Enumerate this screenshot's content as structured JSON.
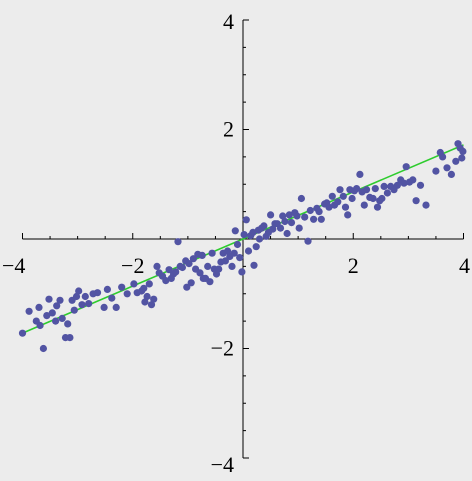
{
  "chart_data": {
    "type": "scatter",
    "title": "",
    "xlabel": "",
    "ylabel": "",
    "xlim": [
      -4,
      4
    ],
    "ylim": [
      -4,
      4
    ],
    "grid": false,
    "axes_through_origin": true,
    "x_ticks": [
      {
        "value": -4,
        "label": "−4"
      },
      {
        "value": -2,
        "label": "−2"
      },
      {
        "value": 2,
        "label": "2"
      },
      {
        "value": 4,
        "label": "4"
      }
    ],
    "y_ticks": [
      {
        "value": 4,
        "label": "4"
      },
      {
        "value": 2,
        "label": "2"
      },
      {
        "value": -2,
        "label": "−2"
      },
      {
        "value": -4,
        "label": "−4"
      }
    ],
    "colors": {
      "points": "#5254a3",
      "fit_line": "#2ecc2e",
      "axes": "#000000",
      "background": "#ececec"
    },
    "fit_line": {
      "x": [
        -4,
        4
      ],
      "y": [
        -1.72,
        1.72
      ]
    },
    "points": [
      [
        -4.0,
        -1.72
      ],
      [
        -3.88,
        -1.32
      ],
      [
        -3.75,
        -1.5
      ],
      [
        -3.7,
        -1.25
      ],
      [
        -3.68,
        -1.58
      ],
      [
        -3.62,
        -2.0
      ],
      [
        -3.56,
        -1.4
      ],
      [
        -3.52,
        -1.1
      ],
      [
        -3.46,
        -1.35
      ],
      [
        -3.4,
        -1.5
      ],
      [
        -3.38,
        -1.22
      ],
      [
        -3.32,
        -1.12
      ],
      [
        -3.28,
        -1.45
      ],
      [
        -3.22,
        -1.8
      ],
      [
        -3.18,
        -1.55
      ],
      [
        -3.14,
        -1.8
      ],
      [
        -3.1,
        -1.12
      ],
      [
        -3.06,
        -1.3
      ],
      [
        -3.02,
        -1.05
      ],
      [
        -2.98,
        -0.95
      ],
      [
        -2.92,
        -1.2
      ],
      [
        -2.86,
        -1.05
      ],
      [
        -2.8,
        -1.18
      ],
      [
        -2.72,
        -1.0
      ],
      [
        -2.64,
        -0.98
      ],
      [
        -2.52,
        -1.25
      ],
      [
        -2.46,
        -0.92
      ],
      [
        -2.38,
        -1.08
      ],
      [
        -2.3,
        -1.25
      ],
      [
        -2.2,
        -0.88
      ],
      [
        -2.1,
        -1.0
      ],
      [
        -1.98,
        -0.82
      ],
      [
        -1.92,
        -0.98
      ],
      [
        -1.84,
        -0.95
      ],
      [
        -1.8,
        -0.9
      ],
      [
        -1.78,
        -1.15
      ],
      [
        -1.74,
        -1.05
      ],
      [
        -1.7,
        -0.82
      ],
      [
        -1.66,
        -1.2
      ],
      [
        -1.62,
        -1.1
      ],
      [
        -1.56,
        -0.5
      ],
      [
        -1.52,
        -0.62
      ],
      [
        -1.46,
        -0.68
      ],
      [
        -1.4,
        -0.76
      ],
      [
        -1.34,
        -0.56
      ],
      [
        -1.3,
        -0.72
      ],
      [
        -1.26,
        -0.64
      ],
      [
        -1.22,
        -0.6
      ],
      [
        -1.18,
        -0.05
      ],
      [
        -1.14,
        -0.5
      ],
      [
        -1.1,
        -0.52
      ],
      [
        -1.04,
        -0.4
      ],
      [
        -1.02,
        -0.88
      ],
      [
        -0.98,
        -0.45
      ],
      [
        -0.94,
        -0.8
      ],
      [
        -0.9,
        -0.36
      ],
      [
        -0.86,
        -0.55
      ],
      [
        -0.82,
        -0.28
      ],
      [
        -0.78,
        -0.62
      ],
      [
        -0.74,
        -0.3
      ],
      [
        -0.72,
        -0.72
      ],
      [
        -0.68,
        -0.72
      ],
      [
        -0.64,
        -0.5
      ],
      [
        -0.6,
        -0.78
      ],
      [
        -0.56,
        -0.26
      ],
      [
        -0.52,
        -0.55
      ],
      [
        -0.48,
        -0.64
      ],
      [
        -0.44,
        -0.55
      ],
      [
        -0.4,
        -0.42
      ],
      [
        -0.36,
        -0.26
      ],
      [
        -0.32,
        -0.4
      ],
      [
        -0.28,
        -0.22
      ],
      [
        -0.24,
        -0.32
      ],
      [
        -0.2,
        -0.5
      ],
      [
        -0.16,
        -0.26
      ],
      [
        -0.14,
        0.15
      ],
      [
        -0.1,
        -0.1
      ],
      [
        -0.06,
        -0.34
      ],
      [
        -0.02,
        -0.6
      ],
      [
        0.02,
        0.08
      ],
      [
        0.06,
        0.35
      ],
      [
        0.1,
        -0.22
      ],
      [
        0.14,
        0.06
      ],
      [
        0.18,
        0.12
      ],
      [
        0.2,
        -0.48
      ],
      [
        0.24,
        -0.14
      ],
      [
        0.28,
        0.16
      ],
      [
        0.3,
        0.0
      ],
      [
        0.34,
        0.2
      ],
      [
        0.38,
        0.24
      ],
      [
        0.42,
        0.05
      ],
      [
        0.46,
        0.12
      ],
      [
        0.5,
        0.44
      ],
      [
        0.54,
        0.18
      ],
      [
        0.58,
        0.28
      ],
      [
        0.62,
        0.28
      ],
      [
        0.68,
        0.2
      ],
      [
        0.72,
        0.42
      ],
      [
        0.76,
        0.32
      ],
      [
        0.8,
        0.1
      ],
      [
        0.84,
        0.44
      ],
      [
        0.88,
        0.3
      ],
      [
        0.94,
        0.48
      ],
      [
        0.98,
        0.42
      ],
      [
        1.02,
        0.2
      ],
      [
        1.06,
        0.74
      ],
      [
        1.12,
        0.4
      ],
      [
        1.18,
        -0.04
      ],
      [
        1.22,
        0.52
      ],
      [
        1.28,
        0.36
      ],
      [
        1.34,
        0.56
      ],
      [
        1.38,
        0.5
      ],
      [
        1.42,
        0.36
      ],
      [
        1.48,
        0.64
      ],
      [
        1.52,
        0.66
      ],
      [
        1.56,
        0.58
      ],
      [
        1.62,
        0.78
      ],
      [
        1.66,
        0.62
      ],
      [
        1.72,
        0.68
      ],
      [
        1.76,
        0.9
      ],
      [
        1.82,
        0.78
      ],
      [
        1.86,
        0.58
      ],
      [
        1.9,
        0.44
      ],
      [
        1.94,
        0.9
      ],
      [
        1.98,
        0.74
      ],
      [
        2.02,
        0.88
      ],
      [
        2.06,
        0.92
      ],
      [
        2.12,
        1.18
      ],
      [
        2.16,
        0.86
      ],
      [
        2.2,
        0.62
      ],
      [
        2.24,
        0.9
      ],
      [
        2.3,
        0.76
      ],
      [
        2.36,
        0.74
      ],
      [
        2.4,
        0.92
      ],
      [
        2.44,
        0.58
      ],
      [
        2.48,
        0.7
      ],
      [
        2.52,
        0.74
      ],
      [
        2.56,
        0.96
      ],
      [
        2.62,
        0.84
      ],
      [
        2.68,
        0.96
      ],
      [
        2.74,
        0.9
      ],
      [
        2.8,
        0.98
      ],
      [
        2.86,
        1.08
      ],
      [
        2.92,
        1.02
      ],
      [
        2.96,
        1.32
      ],
      [
        3.02,
        1.04
      ],
      [
        3.08,
        1.08
      ],
      [
        3.14,
        0.7
      ],
      [
        3.22,
        0.98
      ],
      [
        3.32,
        0.62
      ],
      [
        3.5,
        1.24
      ],
      [
        3.58,
        1.58
      ],
      [
        3.62,
        1.5
      ],
      [
        3.7,
        1.3
      ],
      [
        3.78,
        1.18
      ],
      [
        3.86,
        1.42
      ],
      [
        3.9,
        1.74
      ],
      [
        3.94,
        1.66
      ],
      [
        3.97,
        1.48
      ],
      [
        3.99,
        1.6
      ]
    ]
  }
}
